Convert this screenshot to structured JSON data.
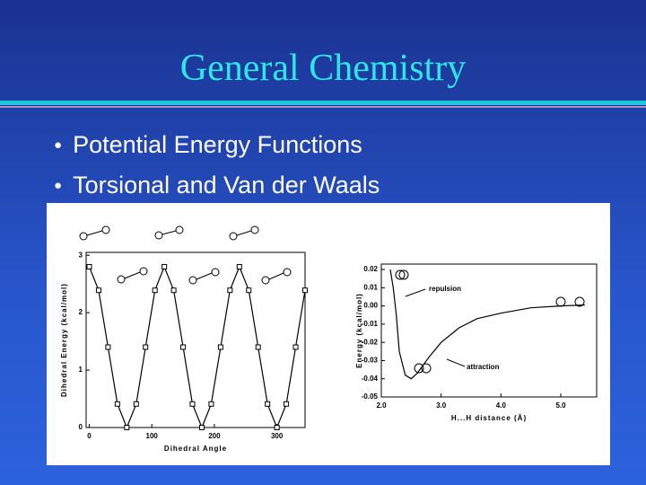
{
  "header": {
    "title": "General Chemistry"
  },
  "bullets": [
    "Potential Energy Functions",
    "Torsional and Van der Waals"
  ],
  "figure": {
    "torsion_chart": {
      "type": "line",
      "y_label": "Dihedral Energy (kcal/mol)",
      "x_label": "Dihedral Angle",
      "x": [
        0,
        15,
        30,
        45,
        60,
        75,
        90,
        105,
        120,
        135,
        150,
        165,
        180,
        195,
        210,
        225,
        240,
        255,
        270,
        285,
        300,
        315,
        330,
        345
      ],
      "values": [
        2.8,
        2.39,
        1.4,
        0.41,
        0,
        0.41,
        1.4,
        2.39,
        2.8,
        2.39,
        1.4,
        0.41,
        0,
        0.41,
        1.4,
        2.39,
        2.8,
        2.39,
        1.4,
        0.41,
        0,
        0.41,
        1.4,
        2.39
      ],
      "xlim": [
        -5,
        345
      ],
      "ylim": [
        0,
        3.05
      ],
      "xticks": [
        0,
        100,
        200,
        300
      ],
      "yticks": [
        0,
        1,
        2,
        3
      ],
      "color": "#000000"
    },
    "vdw_chart": {
      "type": "line",
      "y_label": "Energy (kcal/mol)",
      "x_label": "H...H distance (Å)",
      "x": [
        2.15,
        2.2,
        2.25,
        2.3,
        2.4,
        2.5,
        2.6,
        2.8,
        3.0,
        3.3,
        3.6,
        4.0,
        4.5,
        5.0,
        5.4
      ],
      "values": [
        0.02,
        0.01,
        -0.005,
        -0.025,
        -0.038,
        -0.04,
        -0.037,
        -0.028,
        -0.02,
        -0.012,
        -0.007,
        -0.004,
        -0.001,
        0.0,
        0.0005
      ],
      "xlim": [
        2.0,
        5.6
      ],
      "ylim": [
        -0.05,
        0.023
      ],
      "xticks": [
        {
          "value": 2.0,
          "label": "2.0"
        },
        {
          "value": 3.0,
          "label": "3.0"
        },
        {
          "value": 4.0,
          "label": "4.0"
        },
        {
          "value": 5.0,
          "label": "5.0"
        }
      ],
      "yticks": [
        0.02,
        0.01,
        {
          "value": 0,
          "label": "0.00"
        },
        -0.01,
        -0.02,
        -0.03,
        -0.04,
        -0.05
      ],
      "annotations": [
        "repulsion",
        "attraction"
      ],
      "color": "#000000"
    }
  }
}
